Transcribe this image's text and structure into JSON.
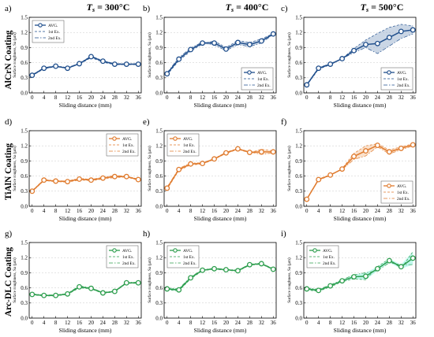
{
  "columns": [
    {
      "label_italic": "T",
      "label_sub": "s",
      "label_rest": " = 300°C"
    },
    {
      "label_italic": "T",
      "label_sub": "s",
      "label_rest": " = 400°C"
    },
    {
      "label_italic": "T",
      "label_sub": "s",
      "label_rest": " = 500°C"
    }
  ],
  "rows": [
    {
      "label": "AlCrN Coating",
      "color": "#1f4e8c",
      "band": "#9fb4cf"
    },
    {
      "label": "TiAlN Coating",
      "color": "#e07b2e",
      "band": "#f6c9a3"
    },
    {
      "label": "Arc-DLC Coating",
      "color": "#2e9e4e",
      "band": "#8ef0df"
    }
  ],
  "common": {
    "xlabel": "Sliding distance (mm)",
    "ylabel": "Surface roughness, Sa (μm)",
    "x_ticks": [
      "0",
      "4",
      "8",
      "12",
      "16",
      "20",
      "24",
      "28",
      "32",
      "36"
    ],
    "y_ticks": [
      "0.0",
      "0.3",
      "0.6",
      "0.9",
      "1.2",
      "1.5"
    ],
    "legend": [
      "AVG.",
      "1st Ex.",
      "2nd Ex."
    ]
  },
  "chart_data": [
    {
      "panel": "a)",
      "type": "line",
      "row": 0,
      "col": 0,
      "legend_pos": "top-left",
      "x": [
        0,
        4,
        8,
        12,
        16,
        20,
        24,
        28,
        32,
        36
      ],
      "xlim": [
        -1,
        37
      ],
      "ylim": [
        0,
        1.5
      ],
      "series": [
        {
          "name": "AVG.",
          "values": [
            0.35,
            0.49,
            0.53,
            0.49,
            0.58,
            0.72,
            0.63,
            0.57,
            0.57,
            0.57
          ]
        },
        {
          "name": "1st Ex.",
          "values": [
            0.34,
            0.48,
            0.52,
            0.49,
            0.57,
            0.7,
            0.61,
            0.56,
            0.56,
            0.56
          ]
        },
        {
          "name": "2nd Ex.",
          "values": [
            0.36,
            0.5,
            0.54,
            0.5,
            0.59,
            0.73,
            0.64,
            0.58,
            0.58,
            0.58
          ]
        }
      ]
    },
    {
      "panel": "b)",
      "type": "line",
      "row": 0,
      "col": 1,
      "legend_pos": "bottom-right",
      "x": [
        0,
        4,
        8,
        12,
        16,
        20,
        24,
        28,
        32,
        36
      ],
      "xlim": [
        -1,
        37
      ],
      "ylim": [
        0,
        1.5
      ],
      "series": [
        {
          "name": "AVG.",
          "values": [
            0.38,
            0.67,
            0.86,
            0.99,
            0.99,
            0.87,
            1.0,
            0.96,
            1.03,
            1.17
          ]
        },
        {
          "name": "1st Ex.",
          "values": [
            0.36,
            0.64,
            0.83,
            0.97,
            1.03,
            0.9,
            1.04,
            1.0,
            1.07,
            1.18
          ]
        },
        {
          "name": "2nd Ex.",
          "values": [
            0.4,
            0.7,
            0.89,
            1.01,
            0.95,
            0.84,
            0.96,
            0.92,
            0.99,
            1.16
          ]
        }
      ]
    },
    {
      "panel": "c)",
      "type": "line",
      "row": 0,
      "col": 2,
      "legend_pos": "bottom-right",
      "x": [
        0,
        4,
        8,
        12,
        16,
        20,
        24,
        28,
        32,
        36
      ],
      "xlim": [
        -1,
        37
      ],
      "ylim": [
        0,
        1.5
      ],
      "series": [
        {
          "name": "AVG.",
          "values": [
            0.16,
            0.49,
            0.57,
            0.68,
            0.84,
            0.96,
            0.98,
            1.1,
            1.22,
            1.25
          ]
        },
        {
          "name": "1st Ex.",
          "values": [
            0.15,
            0.47,
            0.56,
            0.68,
            0.88,
            1.05,
            1.18,
            1.3,
            1.36,
            1.33
          ]
        },
        {
          "name": "2nd Ex.",
          "values": [
            0.17,
            0.5,
            0.58,
            0.68,
            0.8,
            0.9,
            0.78,
            0.93,
            1.08,
            1.17
          ]
        }
      ]
    },
    {
      "panel": "d)",
      "type": "line",
      "row": 1,
      "col": 0,
      "legend_pos": "top-right",
      "x": [
        0,
        4,
        8,
        12,
        16,
        20,
        24,
        28,
        32,
        36
      ],
      "xlim": [
        -1,
        37
      ],
      "ylim": [
        0,
        1.5
      ],
      "series": [
        {
          "name": "AVG.",
          "values": [
            0.3,
            0.52,
            0.5,
            0.49,
            0.54,
            0.52,
            0.56,
            0.59,
            0.59,
            0.53
          ]
        },
        {
          "name": "1st Ex.",
          "values": [
            0.29,
            0.51,
            0.49,
            0.48,
            0.52,
            0.51,
            0.54,
            0.57,
            0.58,
            0.52
          ]
        },
        {
          "name": "2nd Ex.",
          "values": [
            0.31,
            0.53,
            0.51,
            0.5,
            0.56,
            0.53,
            0.58,
            0.61,
            0.6,
            0.54
          ]
        }
      ]
    },
    {
      "panel": "e)",
      "type": "line",
      "row": 1,
      "col": 1,
      "legend_pos": "top-left",
      "x": [
        0,
        4,
        8,
        12,
        16,
        20,
        24,
        28,
        32,
        36
      ],
      "xlim": [
        -1,
        37
      ],
      "ylim": [
        0,
        1.5
      ],
      "series": [
        {
          "name": "AVG.",
          "values": [
            0.36,
            0.73,
            0.84,
            0.85,
            0.94,
            1.06,
            1.14,
            1.07,
            1.08,
            1.08
          ]
        },
        {
          "name": "1st Ex.",
          "values": [
            0.34,
            0.71,
            0.82,
            0.84,
            0.93,
            1.05,
            1.13,
            1.06,
            1.13,
            1.1
          ]
        },
        {
          "name": "2nd Ex.",
          "values": [
            0.38,
            0.75,
            0.86,
            0.86,
            0.95,
            1.07,
            1.15,
            1.08,
            1.03,
            1.06
          ]
        }
      ]
    },
    {
      "panel": "f)",
      "type": "line",
      "row": 1,
      "col": 2,
      "legend_pos": "bottom-right",
      "x": [
        0,
        4,
        8,
        12,
        16,
        20,
        24,
        28,
        32,
        36
      ],
      "xlim": [
        -1,
        37
      ],
      "ylim": [
        0,
        1.5
      ],
      "series": [
        {
          "name": "AVG.",
          "values": [
            0.14,
            0.53,
            0.62,
            0.74,
            0.99,
            1.1,
            1.21,
            1.08,
            1.15,
            1.22
          ]
        },
        {
          "name": "1st Ex.",
          "values": [
            0.13,
            0.52,
            0.61,
            0.75,
            1.05,
            1.2,
            1.24,
            1.12,
            1.18,
            1.24
          ]
        },
        {
          "name": "2nd Ex.",
          "values": [
            0.15,
            0.54,
            0.63,
            0.73,
            0.93,
            1.0,
            1.18,
            1.04,
            1.12,
            1.2
          ]
        }
      ]
    },
    {
      "panel": "g)",
      "type": "line",
      "row": 2,
      "col": 0,
      "legend_pos": "top-right",
      "x": [
        0,
        4,
        8,
        12,
        16,
        20,
        24,
        28,
        32,
        36
      ],
      "xlim": [
        -1,
        37
      ],
      "ylim": [
        0,
        1.5
      ],
      "series": [
        {
          "name": "AVG.",
          "values": [
            0.47,
            0.45,
            0.45,
            0.48,
            0.62,
            0.59,
            0.5,
            0.53,
            0.7,
            0.7
          ]
        },
        {
          "name": "1st Ex.",
          "values": [
            0.46,
            0.44,
            0.44,
            0.47,
            0.6,
            0.58,
            0.49,
            0.52,
            0.69,
            0.69
          ]
        },
        {
          "name": "2nd Ex.",
          "values": [
            0.48,
            0.46,
            0.46,
            0.49,
            0.64,
            0.6,
            0.51,
            0.54,
            0.71,
            0.71
          ]
        }
      ]
    },
    {
      "panel": "h)",
      "type": "line",
      "row": 2,
      "col": 1,
      "legend_pos": "top-left",
      "x": [
        0,
        4,
        8,
        12,
        16,
        20,
        24,
        28,
        32,
        36
      ],
      "xlim": [
        -1,
        37
      ],
      "ylim": [
        0,
        1.5
      ],
      "series": [
        {
          "name": "AVG.",
          "values": [
            0.58,
            0.56,
            0.8,
            0.95,
            0.98,
            0.96,
            0.94,
            1.06,
            1.08,
            0.97
          ]
        },
        {
          "name": "1st Ex.",
          "values": [
            0.56,
            0.54,
            0.78,
            0.94,
            0.97,
            0.95,
            0.93,
            1.05,
            1.07,
            0.96
          ]
        },
        {
          "name": "2nd Ex.",
          "values": [
            0.6,
            0.58,
            0.82,
            0.96,
            0.99,
            0.97,
            0.95,
            1.07,
            1.09,
            0.98
          ]
        }
      ]
    },
    {
      "panel": "i)",
      "type": "line",
      "row": 2,
      "col": 2,
      "legend_pos": "top-left",
      "x": [
        0,
        4,
        8,
        12,
        16,
        20,
        24,
        28,
        32,
        36
      ],
      "xlim": [
        -1,
        37
      ],
      "ylim": [
        0,
        1.5
      ],
      "series": [
        {
          "name": "AVG.",
          "values": [
            0.58,
            0.55,
            0.64,
            0.74,
            0.82,
            0.83,
            0.98,
            1.14,
            1.02,
            1.19
          ]
        },
        {
          "name": "1st Ex.",
          "values": [
            0.56,
            0.53,
            0.62,
            0.72,
            0.78,
            0.76,
            1.02,
            1.18,
            0.98,
            1.32
          ]
        },
        {
          "name": "2nd Ex.",
          "values": [
            0.6,
            0.57,
            0.66,
            0.76,
            0.86,
            0.9,
            0.94,
            1.1,
            1.06,
            1.06
          ]
        }
      ]
    }
  ]
}
